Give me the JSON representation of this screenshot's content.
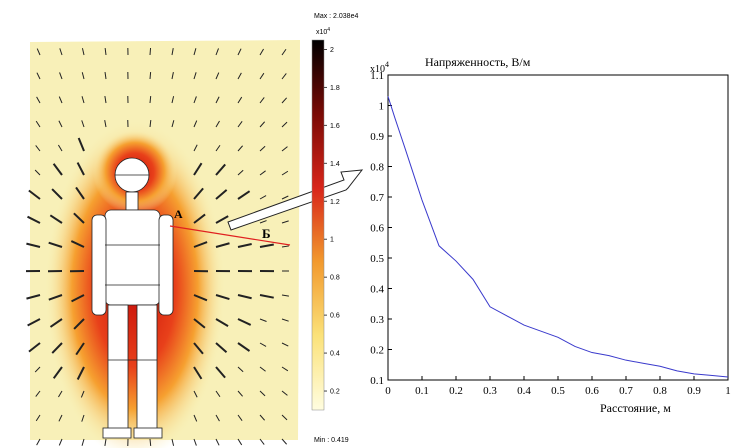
{
  "chart_data": [
    {
      "type": "heatmap",
      "max_label": "Max : 2.038e4",
      "min_label": "Min : 0.419",
      "multiplier": "x10",
      "multiplier_exp": "4",
      "clim": [
        0.1,
        2.05
      ],
      "cticks": [
        0.2,
        0.4,
        0.6,
        0.8,
        1,
        1.2,
        1.4,
        1.6,
        1.8,
        2
      ],
      "colors": [
        "#fffde0",
        "#fbe27a",
        "#f29a2e",
        "#d8251a",
        "#7a0a05",
        "#000000"
      ],
      "annotations": [
        "А",
        "Б"
      ]
    },
    {
      "type": "line",
      "title": "Напряженность, В/м",
      "xlabel": "Расстояние, м",
      "multiplier": "x10",
      "multiplier_exp": "4",
      "x": [
        0,
        0.02,
        0.05,
        0.1,
        0.15,
        0.2,
        0.25,
        0.3,
        0.35,
        0.4,
        0.45,
        0.5,
        0.55,
        0.6,
        0.65,
        0.7,
        0.75,
        0.8,
        0.85,
        0.9,
        0.95,
        1
      ],
      "values": [
        1.03,
        0.96,
        0.86,
        0.69,
        0.54,
        0.49,
        0.43,
        0.34,
        0.31,
        0.28,
        0.26,
        0.24,
        0.21,
        0.19,
        0.18,
        0.165,
        0.155,
        0.145,
        0.13,
        0.12,
        0.115,
        0.11
      ],
      "color": "#3a3acc",
      "xlim": [
        0,
        1
      ],
      "ylim": [
        0.1,
        1.1
      ],
      "xticks": [
        0,
        0.1,
        0.2,
        0.3,
        0.4,
        0.5,
        0.6,
        0.7,
        0.8,
        0.9,
        1
      ],
      "yticks": [
        0.1,
        0.2,
        0.3,
        0.4,
        0.5,
        0.6,
        0.7,
        0.8,
        0.9,
        1,
        1.1
      ]
    }
  ]
}
